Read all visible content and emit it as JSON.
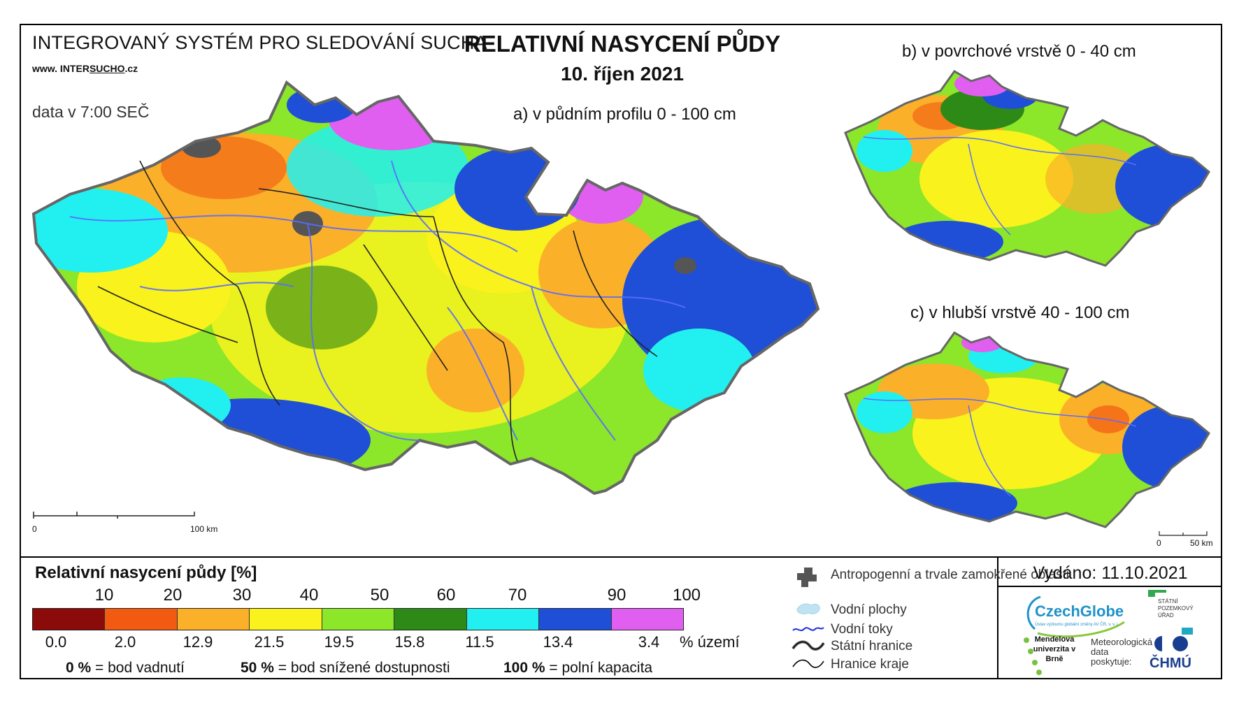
{
  "header": {
    "system_name": "INTEGROVANÝ SYSTÉM PRO SLEDOVÁNÍ SUCHA",
    "website_prefix": "www. INTER",
    "website_underlined": "SUCHO",
    "website_suffix": ".cz",
    "data_time": "data v 7:00 SEČ",
    "title": "RELATIVNÍ NASYCENÍ PŮDY",
    "date": "10. říjen 2021"
  },
  "maps": {
    "a_label": "a) v půdním profilu 0 - 100 cm",
    "b_label": "b) v povrchové vrstvě 0 - 40 cm",
    "c_label": "c) v hlubší vrstvě 40 - 100 cm",
    "scale_main": {
      "start": "0",
      "end": "100 km"
    },
    "scale_small": {
      "start": "0",
      "end": "50 km"
    }
  },
  "legend": {
    "title": "Relativní nasycení půdy [%]",
    "ticks": [
      "10",
      "20",
      "30",
      "40",
      "50",
      "60",
      "70",
      "90",
      "100"
    ],
    "classes": [
      {
        "color": "#8b0a0a",
        "share": "0.0"
      },
      {
        "color": "#f25a12",
        "share": "2.0"
      },
      {
        "color": "#fbb02a",
        "share": "12.9"
      },
      {
        "color": "#f9f21c",
        "share": "21.5"
      },
      {
        "color": "#8ce62a",
        "share": "19.5"
      },
      {
        "color": "#2e8a16",
        "share": "15.8"
      },
      {
        "color": "#22f0f0",
        "share": "11.5"
      },
      {
        "color": "#1e4fd6",
        "share": "13.4"
      },
      {
        "color": "#e15ff0",
        "share": "3.4"
      }
    ],
    "share_unit": "% území",
    "notes": [
      {
        "value": "0 %",
        "text": "= bod vadnutí"
      },
      {
        "value": "50 %",
        "text": "= bod snížené dostupnosti"
      },
      {
        "value": "100 %",
        "text": "= polní kapacita"
      }
    ]
  },
  "overlays": {
    "items": [
      {
        "icon": "anthropogenic-area-icon",
        "label": "Antropogenní a trvale zamokřené oblasti"
      },
      {
        "icon": "water-body-icon",
        "label": "Vodní plochy"
      },
      {
        "icon": "river-icon",
        "label": "Vodní toky"
      },
      {
        "icon": "state-border-icon",
        "label": "Státní hranice"
      },
      {
        "icon": "region-border-icon",
        "label": "Hranice kraje"
      }
    ]
  },
  "credits": {
    "issued": "Vydáno: 11.10.2021",
    "czechglobe": "CzechGlobe",
    "czechglobe_sub": "Ústav výzkumu globální změny AV ČR, v. v. i.",
    "spu": "STÁTNÍ POZEMKOVÝ ÚŘAD",
    "mendel": "Mendelova univerzita v Brně",
    "meteo": "Meteorologická data poskytuje:",
    "chmu": "ČHMÚ"
  }
}
